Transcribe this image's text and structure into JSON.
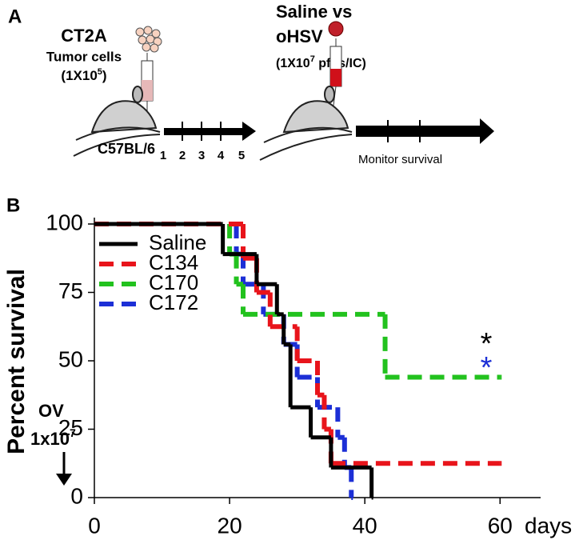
{
  "panel_a": {
    "label": "A",
    "cells_title": "CT2A",
    "cells_subtitle": "Tumor cells",
    "cells_dose": {
      "open": "(1X10",
      "exp": "5",
      "close": ")"
    },
    "strain": "C57BL/6",
    "days": [
      "1",
      "2",
      "3",
      "4",
      "5"
    ],
    "treatment_line1": "Saline vs",
    "treatment_line2": "oHSV",
    "virus_dose": {
      "open": "(1X10",
      "exp": "7",
      "close": " pfus/IC)"
    },
    "monitor": "Monitor survival"
  },
  "panel_b": {
    "label": "B"
  },
  "chart_data": {
    "type": "step",
    "y_label": "Percent survival",
    "x_label": "days",
    "xlim": [
      0,
      66
    ],
    "ylim": [
      0,
      100
    ],
    "xticks": [
      0,
      20,
      40,
      60
    ],
    "yticks": [
      0,
      25,
      50,
      75,
      100
    ],
    "legend": "top-left",
    "series": [
      {
        "name": "Saline",
        "color": "#000000",
        "dashed": false,
        "x": [
          0,
          19,
          24,
          27,
          28,
          29,
          32,
          35,
          41
        ],
        "values": [
          100,
          89,
          78,
          67,
          56,
          33,
          22,
          11,
          0
        ]
      },
      {
        "name": "C134",
        "color": "#e8141b",
        "dashed": true,
        "x": [
          0,
          22,
          24,
          26,
          30,
          33,
          34,
          35,
          60
        ],
        "values": [
          100,
          87.5,
          75,
          62.5,
          50,
          37.5,
          25,
          12.5,
          12.5
        ]
      },
      {
        "name": "C170",
        "color": "#22c21e",
        "dashed": true,
        "x": [
          0,
          20,
          21,
          22,
          43,
          60
        ],
        "values": [
          100,
          89,
          78,
          67,
          44,
          44
        ]
      },
      {
        "name": "C172",
        "color": "#1c2fd6",
        "dashed": true,
        "x": [
          0,
          21,
          22,
          25,
          28,
          30,
          33,
          36,
          37,
          38
        ],
        "values": [
          100,
          89,
          78,
          67,
          56,
          44,
          33,
          22,
          11,
          0
        ]
      }
    ],
    "annotations": {
      "ov": "OV",
      "ov_dose": {
        "open": "1x10",
        "exp": "7"
      },
      "stars": [
        {
          "text": "*",
          "color": "#000000"
        },
        {
          "text": "*",
          "color": "#1c2fd6"
        }
      ]
    }
  }
}
